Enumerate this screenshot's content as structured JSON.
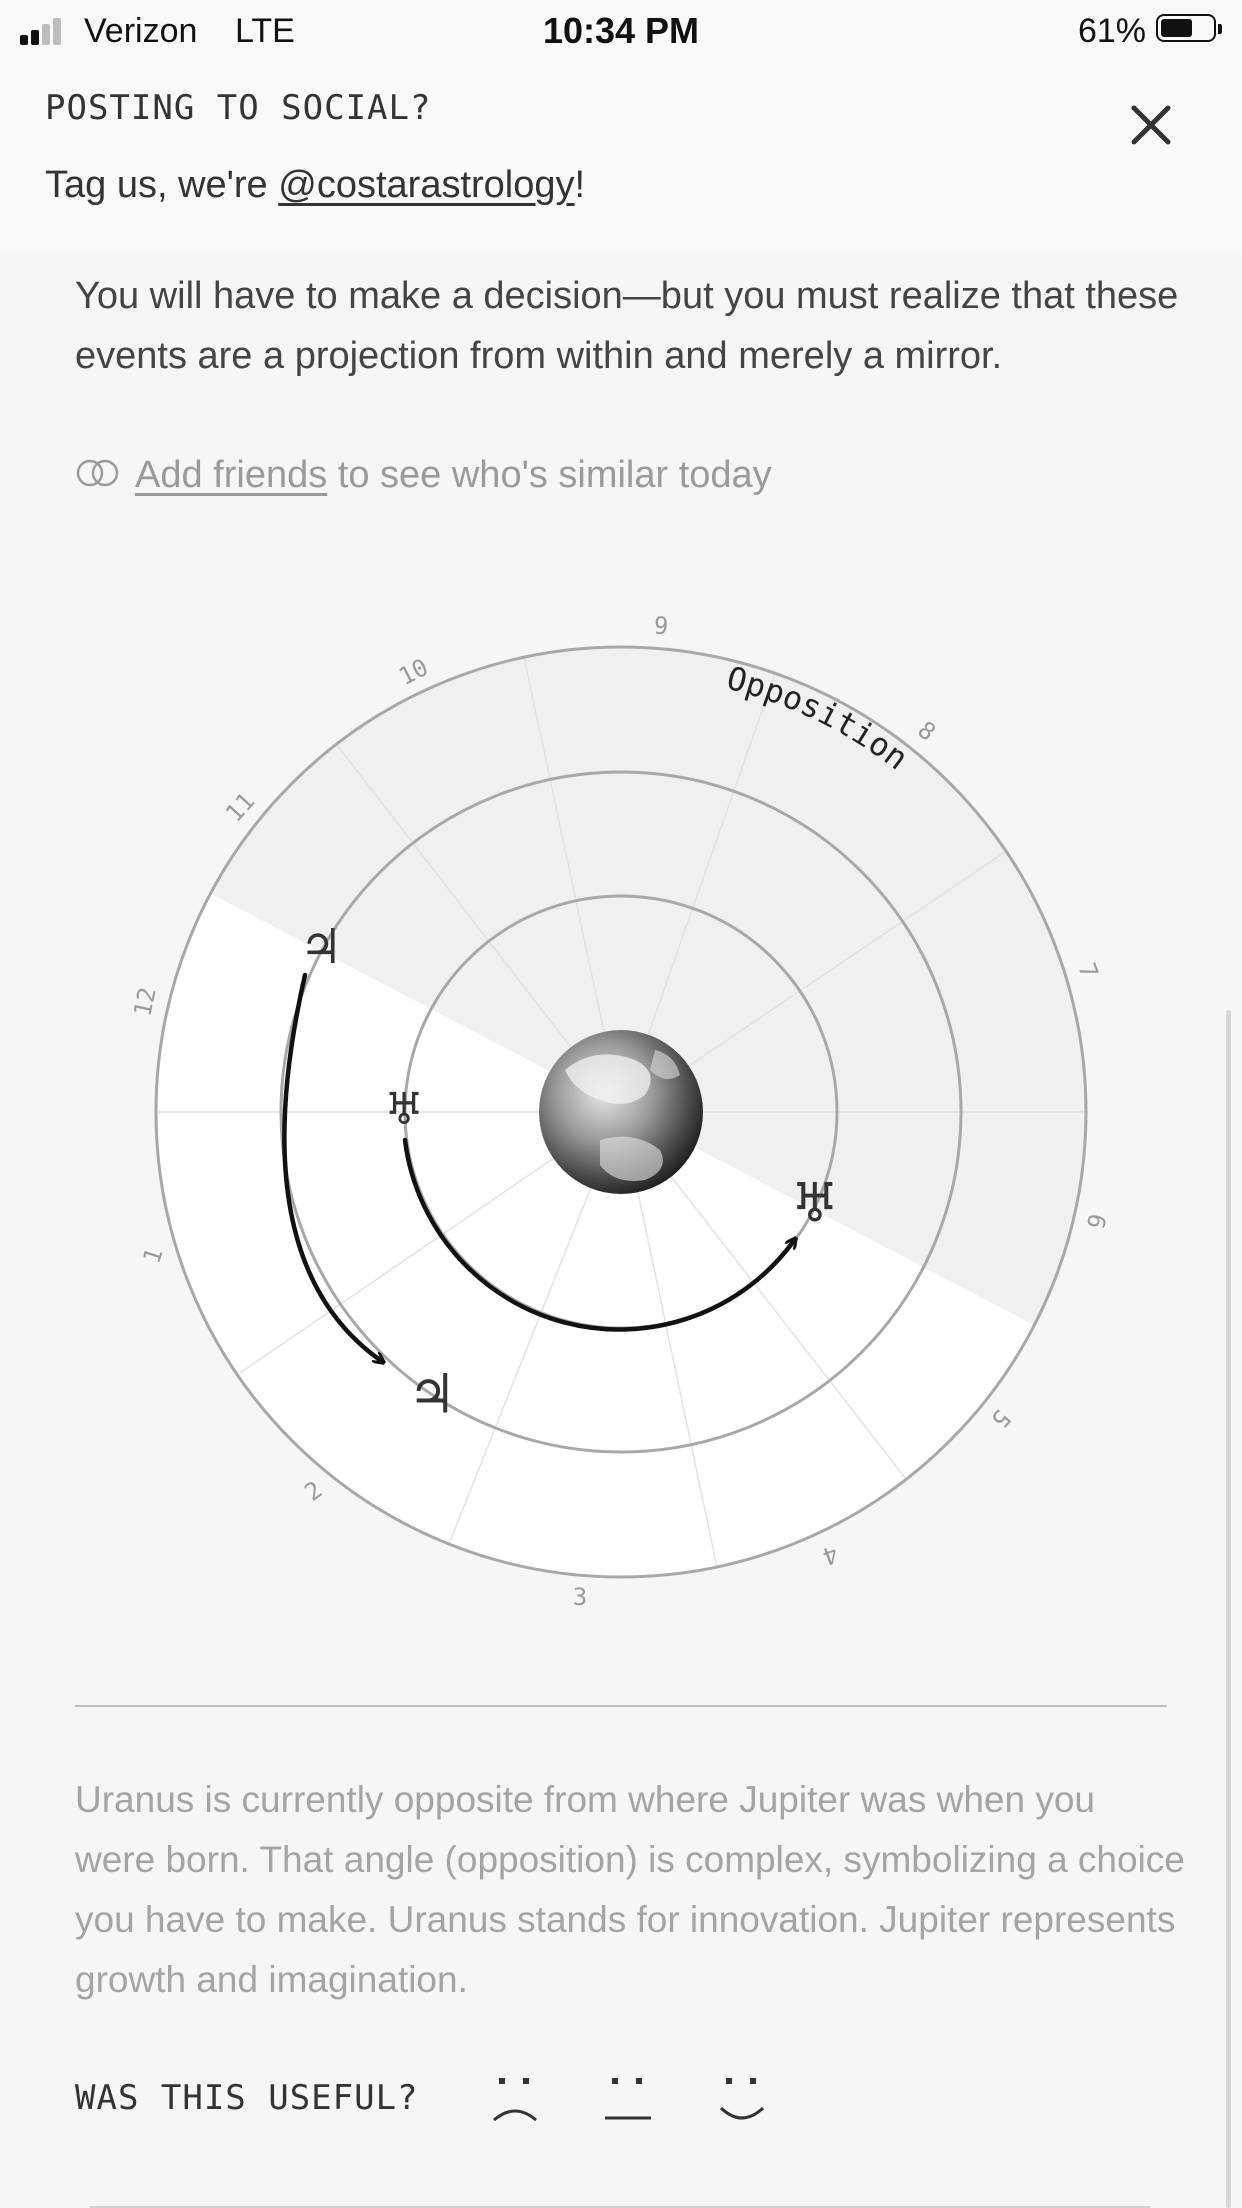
{
  "status_bar": {
    "carrier": "Verizon",
    "network": "LTE",
    "time": "10:34 PM",
    "battery_percent": "61%",
    "battery_level": 0.61,
    "signal_bars": 2
  },
  "banner": {
    "title": "POSTING TO SOCIAL?",
    "text_prefix": "Tag us, we're ",
    "handle": "@costarastrology",
    "text_suffix": "!",
    "close_icon": "close-icon"
  },
  "intro_text": "You will have to make a decision—but you must realize that these events are a projection from within and merely a mirror.",
  "friends": {
    "link_text": "Add friends",
    "rest_text": " to see who's similar today",
    "icon": "overlapping-circles-icon"
  },
  "chart": {
    "aspect_label": "Opposition",
    "house_numbers": [
      "9",
      "8",
      "7",
      "6",
      "5",
      "4",
      "3",
      "2",
      "1",
      "12",
      "11",
      "10"
    ],
    "center_icon": "earth-icon",
    "planets": [
      {
        "name": "Jupiter",
        "symbol": "♃",
        "role": "natal"
      },
      {
        "name": "Jupiter",
        "symbol": "♃",
        "role": "transit-end"
      },
      {
        "name": "Uranus",
        "symbol": "♅",
        "role": "transit-start"
      },
      {
        "name": "Uranus",
        "symbol": "♅",
        "role": "transit-end"
      }
    ]
  },
  "explanation": "Uranus is currently opposite from where Jupiter was when you were born. That angle (opposition) is complex, symbolizing a choice you have to make. Uranus stands for innovation. Jupiter represents growth and imagination.",
  "feedback": {
    "label": "WAS THIS USEFUL?",
    "options": [
      "sad-face-icon",
      "neutral-face-icon",
      "happy-face-icon"
    ]
  },
  "colors": {
    "background": "#f6f6f6",
    "banner": "#f9f9f9",
    "muted_text": "#a4a4a4",
    "arc": "#111111",
    "ring": "#a8a8a8"
  }
}
